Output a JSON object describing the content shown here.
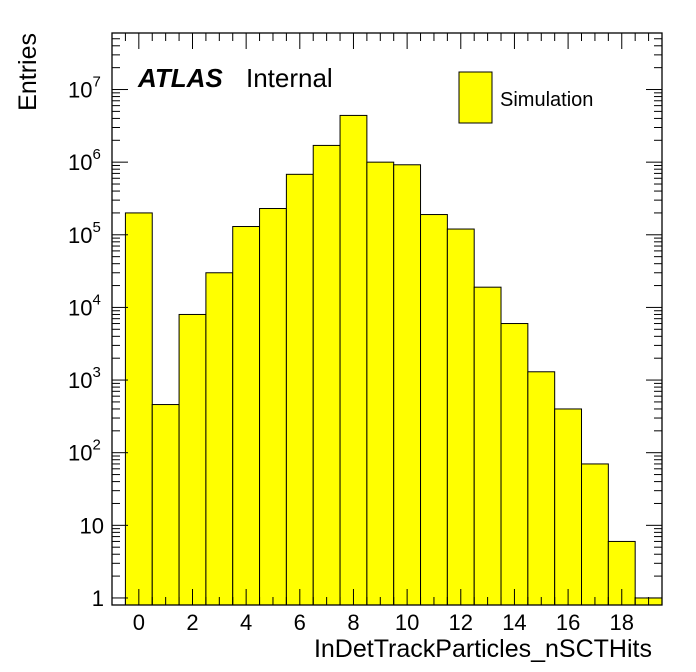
{
  "chart_data": {
    "type": "histogram",
    "title": "",
    "xlabel": "InDetTrackParticles_nSCTHits",
    "ylabel": "Entries",
    "yscale": "log",
    "xlim": [
      -1,
      19.5
    ],
    "ylim": [
      0.8,
      60000000
    ],
    "x_ticks": [
      "0",
      "2",
      "4",
      "6",
      "8",
      "10",
      "12",
      "14",
      "16",
      "18"
    ],
    "y_ticks": [
      {
        "value": 1,
        "base": "1",
        "exp": ""
      },
      {
        "value": 10,
        "base": "10",
        "exp": ""
      },
      {
        "value": 100,
        "base": "10",
        "exp": "2"
      },
      {
        "value": 1000,
        "base": "10",
        "exp": "3"
      },
      {
        "value": 10000,
        "base": "10",
        "exp": "4"
      },
      {
        "value": 100000,
        "base": "10",
        "exp": "5"
      },
      {
        "value": 1000000,
        "base": "10",
        "exp": "6"
      },
      {
        "value": 10000000,
        "base": "10",
        "exp": "7"
      }
    ],
    "bin_edges": [
      -0.5,
      0.5,
      1.5,
      2.5,
      3.5,
      4.5,
      5.5,
      6.5,
      7.5,
      8.5,
      9.5,
      10.5,
      11.5,
      12.5,
      13.5,
      14.5,
      15.5,
      16.5,
      17.5,
      18.5,
      19.5
    ],
    "series": [
      {
        "name": "Simulation",
        "color": "#ffff00",
        "values": [
          200000,
          460,
          8000,
          30000,
          130000,
          230000,
          680000,
          1700000,
          4400000,
          1000000,
          920000,
          190000,
          120000,
          19000,
          6000,
          1300,
          400,
          70,
          6,
          1
        ]
      }
    ],
    "legend": {
      "entries": [
        "Simulation"
      ],
      "placement": "top-right"
    },
    "annotation": {
      "bold": "ATLAS",
      "normal": "Internal"
    },
    "grid": false
  }
}
